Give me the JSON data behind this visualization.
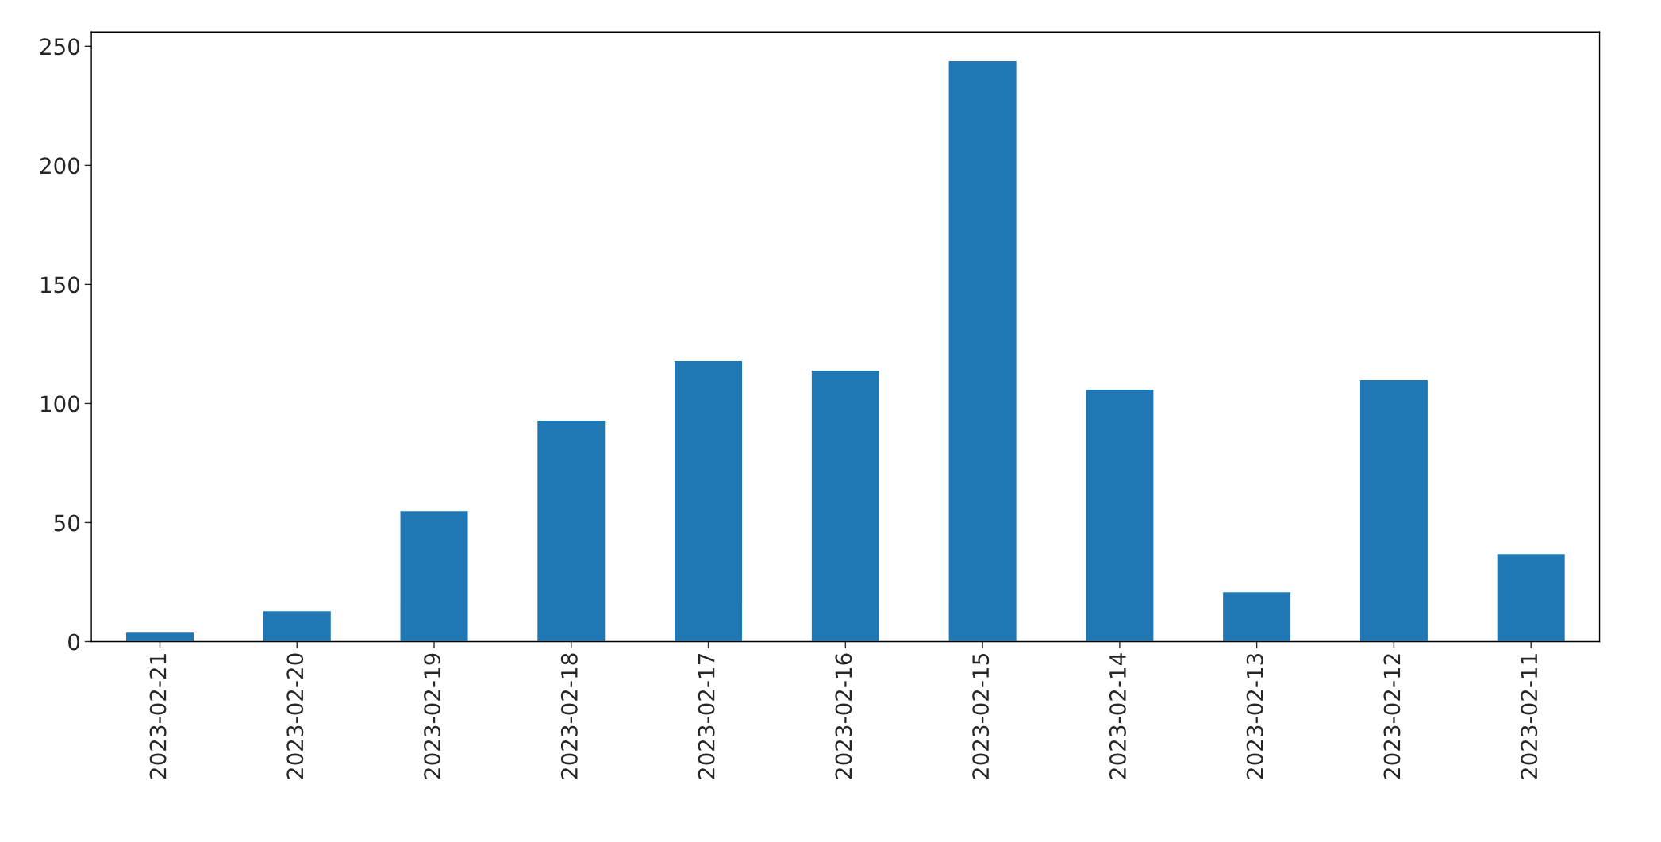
{
  "chart_data": {
    "type": "bar",
    "categories": [
      "2023-02-21",
      "2023-02-20",
      "2023-02-19",
      "2023-02-18",
      "2023-02-17",
      "2023-02-16",
      "2023-02-15",
      "2023-02-14",
      "2023-02-13",
      "2023-02-12",
      "2023-02-11"
    ],
    "values": [
      4,
      13,
      55,
      93,
      118,
      114,
      244,
      106,
      21,
      110,
      37
    ],
    "color": "#1f77b4",
    "ylim": [
      0,
      256
    ],
    "yticks": [
      0,
      50,
      100,
      150,
      200,
      250
    ],
    "grid": false,
    "legend": false
  }
}
